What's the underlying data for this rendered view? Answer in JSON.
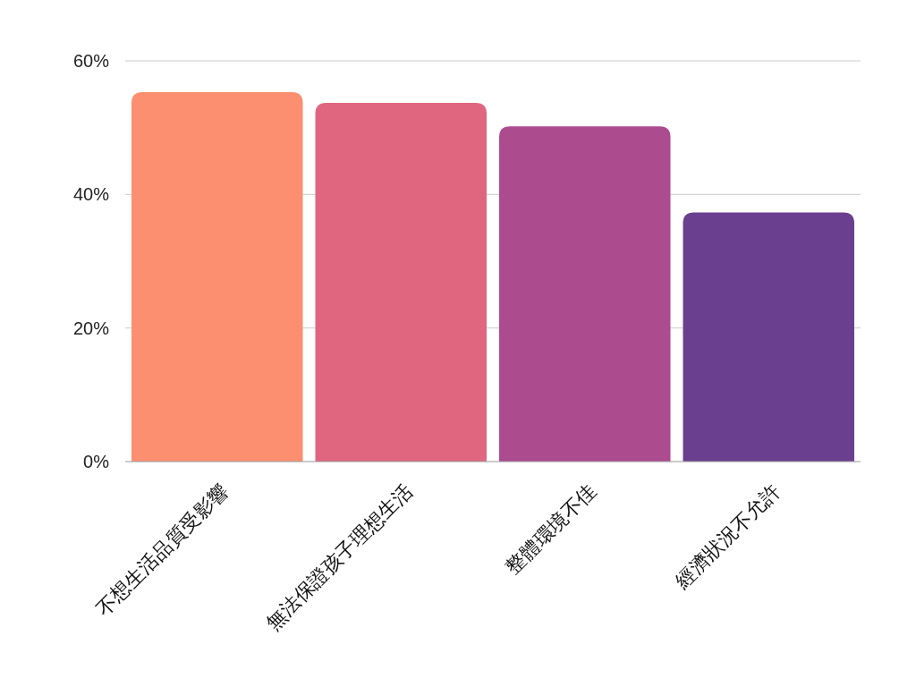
{
  "chart_data": {
    "type": "bar",
    "categories": [
      "不想生活品質受影響",
      "無法保證孩子理想生活",
      "整體環境不佳",
      "經濟狀況不允許"
    ],
    "values": [
      55.3,
      53.7,
      50.2,
      37.3
    ],
    "colors": [
      "#fc8f70",
      "#e0667f",
      "#ad4b8f",
      "#6a3f8f"
    ],
    "ylim": [
      0,
      60
    ],
    "yticks": [
      {
        "value": 0,
        "label": "0%"
      },
      {
        "value": 20,
        "label": "20%"
      },
      {
        "value": 40,
        "label": "40%"
      },
      {
        "value": 60,
        "label": "60%"
      }
    ],
    "grid": "y"
  }
}
